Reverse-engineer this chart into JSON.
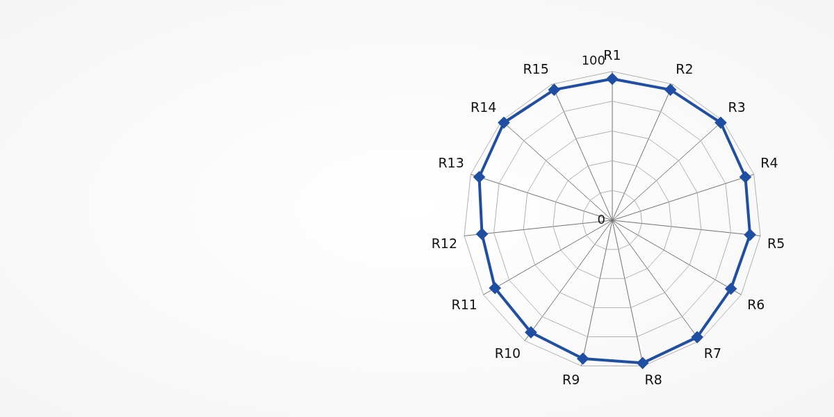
{
  "chart_data": {
    "type": "radar",
    "categories": [
      "R1",
      "R2",
      "R3",
      "R4",
      "R5",
      "R6",
      "R7",
      "R8",
      "R9",
      "R10",
      "R11",
      "R12",
      "R13",
      "R14",
      "R15"
    ],
    "series": [
      {
        "color": "#1f4ea3",
        "values": [
          95,
          96,
          98,
          94,
          93,
          92,
          97,
          98,
          95,
          93,
          91,
          88,
          94,
          98,
          96
        ]
      }
    ],
    "ylim": [
      0,
      100
    ],
    "yticks": [
      0,
      100
    ],
    "grid": true,
    "legend": false,
    "marker": "diamond",
    "line_style": "solid"
  }
}
